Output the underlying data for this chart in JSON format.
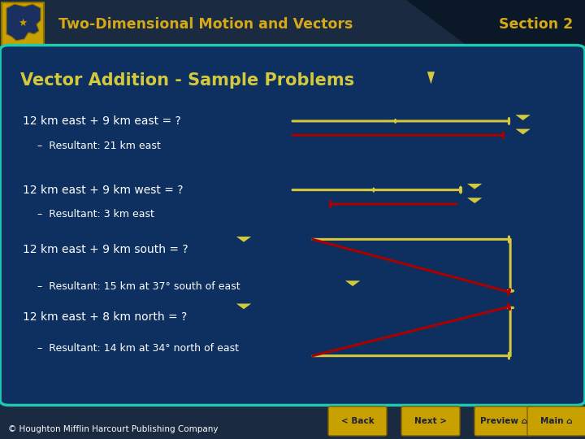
{
  "title_text": "Two-Dimensional Motion and Vectors",
  "section_text": "Section 2",
  "slide_title": "Vector Addition - Sample Problems",
  "header_bg": "#1e3a5a",
  "header_text_color": "#d4a817",
  "main_bg": "#0d3060",
  "content_border": "#20c8b0",
  "yellow_color": "#d4c83c",
  "red_arrow_color": "#aa0000",
  "problems": [
    {
      "question": "12 km east + 9 km east = ?",
      "answer": "–  Resultant: 21 km east"
    },
    {
      "question": "12 km east + 9 km west = ?",
      "answer": "–  Resultant: 3 km east"
    },
    {
      "question": "12 km east + 9 km south = ?",
      "answer": "–  Resultant: 15 km at 37° south of east"
    },
    {
      "question": "12 km east + 8 km north = ?",
      "answer": "–  Resultant: 14 km at 34° north of east"
    }
  ],
  "footer_text": "© Houghton Mifflin Harcourt Publishing Company",
  "nav_buttons": [
    "< Back",
    "Next >",
    "Preview ⌂",
    "Main ⌂"
  ],
  "logo_border": "#8b7000",
  "footer_bg": "#1a2a40"
}
